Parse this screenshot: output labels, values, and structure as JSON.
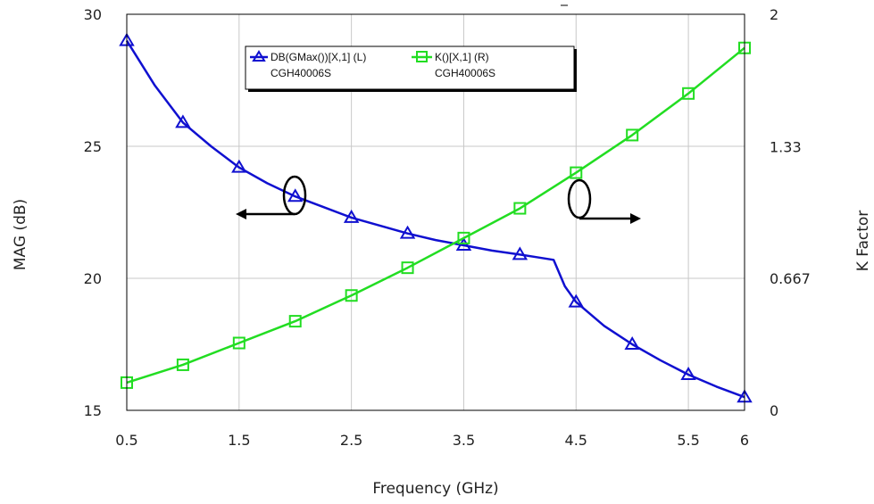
{
  "chart_data": {
    "type": "line",
    "title": "",
    "xlabel": "Frequency (GHz)",
    "ylabel_left": "MAG (dB)",
    "ylabel_right": "K Factor",
    "xlim": [
      0.5,
      6
    ],
    "ylim_left": [
      15,
      30
    ],
    "ylim_right": [
      0,
      2
    ],
    "x_ticks": [
      "0.5",
      "1.5",
      "2.5",
      "3.5",
      "4.5",
      "5.5",
      "6"
    ],
    "y_left_ticks": [
      "15",
      "20",
      "25",
      "30"
    ],
    "y_right_ticks": [
      "0",
      "0.667",
      "1.33",
      "2"
    ],
    "grid": true,
    "legend_position": "top-center",
    "series": [
      {
        "name": "DB(GMax())[X,1] (L)",
        "sublabel": "CGH40006S",
        "axis": "left",
        "color": "#1010d0",
        "marker": "triangle",
        "x": [
          0.5,
          0.75,
          1.0,
          1.25,
          1.5,
          1.75,
          2.0,
          2.25,
          2.5,
          2.75,
          3.0,
          3.25,
          3.5,
          3.75,
          4.0,
          4.15,
          4.3,
          4.4,
          4.5,
          4.75,
          5.0,
          5.25,
          5.5,
          5.75,
          6.0
        ],
        "y": [
          29.0,
          27.3,
          25.9,
          25.0,
          24.2,
          23.6,
          23.1,
          22.7,
          22.3,
          22.0,
          21.7,
          21.45,
          21.25,
          21.05,
          20.9,
          20.8,
          20.7,
          19.7,
          19.1,
          18.2,
          17.5,
          16.9,
          16.35,
          15.9,
          15.5
        ],
        "marker_x": [
          0.5,
          1.0,
          1.5,
          2.0,
          2.5,
          3.0,
          3.5,
          4.0,
          4.5,
          5.0,
          5.5,
          6.0
        ]
      },
      {
        "name": "K()[X,1] (R)",
        "sublabel": "CGH40006S",
        "axis": "right",
        "color": "#22dd22",
        "marker": "square",
        "x": [
          0.5,
          1.0,
          1.5,
          2.0,
          2.5,
          3.0,
          3.5,
          4.0,
          4.5,
          5.0,
          5.5,
          6.0
        ],
        "y": [
          0.14,
          0.23,
          0.34,
          0.45,
          0.58,
          0.72,
          0.87,
          1.02,
          1.2,
          1.39,
          1.6,
          1.83
        ],
        "marker_x": [
          0.5,
          1.0,
          1.5,
          2.0,
          2.5,
          3.0,
          3.5,
          4.0,
          4.5,
          5.0,
          5.5,
          6.0
        ]
      }
    ]
  }
}
